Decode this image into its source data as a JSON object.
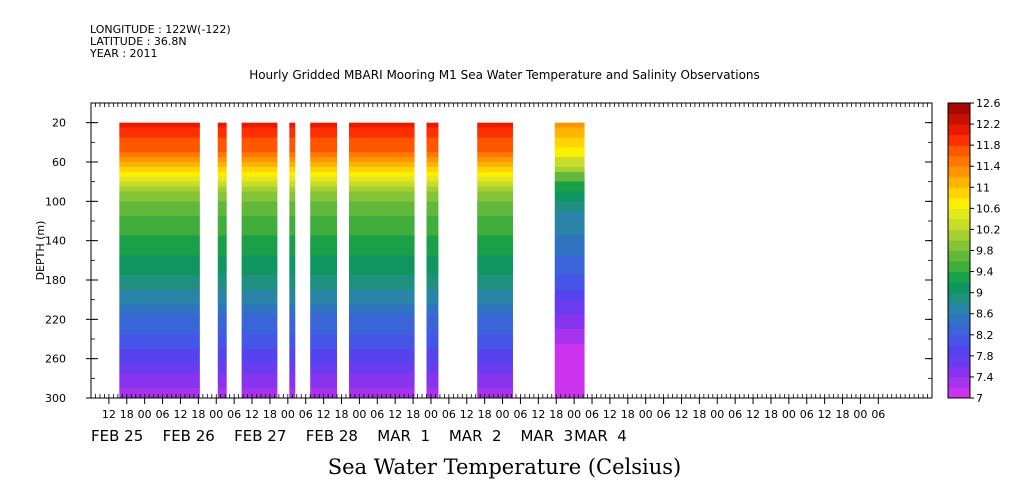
{
  "header": {
    "longitude": "LONGITUDE : 122W(-122)",
    "latitude": "LATITUDE : 36.8N",
    "year": "YEAR : 2011"
  },
  "title": "Hourly Gridded MBARI Mooring M1 Sea Water Temperature and Salinity Observations",
  "bottom_title": "Sea Water Temperature (Celsius)",
  "chart_data": {
    "type": "heatmap",
    "title": "Hourly Gridded MBARI Mooring M1 Sea Water Temperature and Salinity Observations",
    "ylabel": "DEPTH (m)",
    "xlabel": "",
    "colorbar_label": "Sea Water Temperature (Celsius)",
    "x_range_hours": [
      0,
      282
    ],
    "x_start": "2011-02-25 06:00",
    "ylim": [
      300,
      0
    ],
    "y_ticks": [
      20,
      60,
      100,
      140,
      180,
      220,
      260,
      300
    ],
    "x_hour_ticks": [
      {
        "h": 6,
        "label": "12"
      },
      {
        "h": 12,
        "label": "18"
      },
      {
        "h": 18,
        "label": "00"
      },
      {
        "h": 24,
        "label": "06"
      },
      {
        "h": 30,
        "label": "12"
      },
      {
        "h": 36,
        "label": "18"
      },
      {
        "h": 42,
        "label": "00"
      },
      {
        "h": 48,
        "label": "06"
      },
      {
        "h": 54,
        "label": "12"
      },
      {
        "h": 60,
        "label": "18"
      },
      {
        "h": 66,
        "label": "00"
      },
      {
        "h": 72,
        "label": "06"
      },
      {
        "h": 78,
        "label": "12"
      },
      {
        "h": 84,
        "label": "18"
      },
      {
        "h": 90,
        "label": "00"
      },
      {
        "h": 96,
        "label": "06"
      },
      {
        "h": 102,
        "label": "12"
      },
      {
        "h": 108,
        "label": "18"
      },
      {
        "h": 114,
        "label": "00"
      },
      {
        "h": 120,
        "label": "06"
      },
      {
        "h": 126,
        "label": "12"
      },
      {
        "h": 132,
        "label": "18"
      },
      {
        "h": 138,
        "label": "00"
      },
      {
        "h": 144,
        "label": "06"
      },
      {
        "h": 150,
        "label": "12"
      },
      {
        "h": 156,
        "label": "18"
      },
      {
        "h": 162,
        "label": "00"
      },
      {
        "h": 168,
        "label": "06"
      },
      {
        "h": 174,
        "label": "12"
      },
      {
        "h": 180,
        "label": "18"
      },
      {
        "h": 186,
        "label": "00"
      },
      {
        "h": 192,
        "label": "06"
      },
      {
        "h": 198,
        "label": "12"
      },
      {
        "h": 204,
        "label": "18"
      },
      {
        "h": 210,
        "label": "00"
      },
      {
        "h": 216,
        "label": "06"
      },
      {
        "h": 222,
        "label": "12"
      },
      {
        "h": 228,
        "label": "18"
      },
      {
        "h": 234,
        "label": "00"
      },
      {
        "h": 240,
        "label": "06"
      },
      {
        "h": 246,
        "label": "12"
      },
      {
        "h": 252,
        "label": "18"
      },
      {
        "h": 258,
        "label": "00"
      },
      {
        "h": 264,
        "label": "06"
      }
    ],
    "x_day_labels": [
      {
        "h": 0,
        "label": "FEB 25"
      },
      {
        "h": 24,
        "label": "FEB 26"
      },
      {
        "h": 48,
        "label": "FEB 27"
      },
      {
        "h": 72,
        "label": "FEB 28"
      },
      {
        "h": 96,
        "label": "MAR  1"
      },
      {
        "h": 120,
        "label": "MAR  2"
      },
      {
        "h": 144,
        "label": "MAR  3"
      },
      {
        "h": 162,
        "label": "MAR  4"
      }
    ],
    "data_blocks": [
      {
        "start_h": 9.5,
        "end_h": 36.5,
        "surface_temp": 12.0
      },
      {
        "start_h": 42.5,
        "end_h": 45.5,
        "surface_temp": 12.0
      },
      {
        "start_h": 50.5,
        "end_h": 62.5,
        "surface_temp": 12.0
      },
      {
        "start_h": 66.5,
        "end_h": 68.5,
        "surface_temp": 12.0
      },
      {
        "start_h": 73.5,
        "end_h": 82.5,
        "surface_temp": 12.0
      },
      {
        "start_h": 86.5,
        "end_h": 108.5,
        "surface_temp": 12.0
      },
      {
        "start_h": 112.5,
        "end_h": 116.5,
        "surface_temp": 12.0
      },
      {
        "start_h": 129.5,
        "end_h": 141.5,
        "surface_temp": 12.0
      },
      {
        "start_h": 155.5,
        "end_h": 165.5,
        "surface_temp": 11.2
      }
    ],
    "temperature_profile": [
      {
        "depth": 20,
        "temp": 12.0
      },
      {
        "depth": 45,
        "temp": 11.6
      },
      {
        "depth": 60,
        "temp": 11.0
      },
      {
        "depth": 70,
        "temp": 10.6
      },
      {
        "depth": 85,
        "temp": 10.0
      },
      {
        "depth": 110,
        "temp": 9.6
      },
      {
        "depth": 140,
        "temp": 9.3
      },
      {
        "depth": 170,
        "temp": 9.0
      },
      {
        "depth": 200,
        "temp": 8.6
      },
      {
        "depth": 230,
        "temp": 8.2
      },
      {
        "depth": 260,
        "temp": 7.8
      },
      {
        "depth": 285,
        "temp": 7.4
      },
      {
        "depth": 300,
        "temp": 7.2
      }
    ],
    "colorbar": {
      "levels": [
        7,
        7.2,
        7.4,
        7.6,
        7.8,
        8,
        8.2,
        8.4,
        8.6,
        8.8,
        9,
        9.2,
        9.4,
        9.6,
        9.8,
        10,
        10.2,
        10.4,
        10.6,
        10.8,
        11,
        11.2,
        11.4,
        11.6,
        11.8,
        12,
        12.2,
        12.4,
        12.6
      ],
      "labels": [
        "7",
        "7.4",
        "7.8",
        "8.2",
        "8.6",
        "9",
        "9.4",
        "9.8",
        "10.2",
        "10.6",
        "11",
        "11.4",
        "11.8",
        "12.2",
        "12.6"
      ],
      "colors": [
        "#cc33ee",
        "#a733ee",
        "#8833ee",
        "#6a3cf0",
        "#5544ee",
        "#4455e8",
        "#3a64d8",
        "#2f74c0",
        "#2a84a8",
        "#1f8f80",
        "#109560",
        "#1aa048",
        "#40ad3c",
        "#62b83a",
        "#85c436",
        "#a6d032",
        "#c8dc2a",
        "#e3e81c",
        "#fcf000",
        "#ffd400",
        "#ffb400",
        "#ff9600",
        "#ff7600",
        "#ff5600",
        "#ff2e00",
        "#e81a00",
        "#c81000",
        "#a80800"
      ]
    }
  }
}
